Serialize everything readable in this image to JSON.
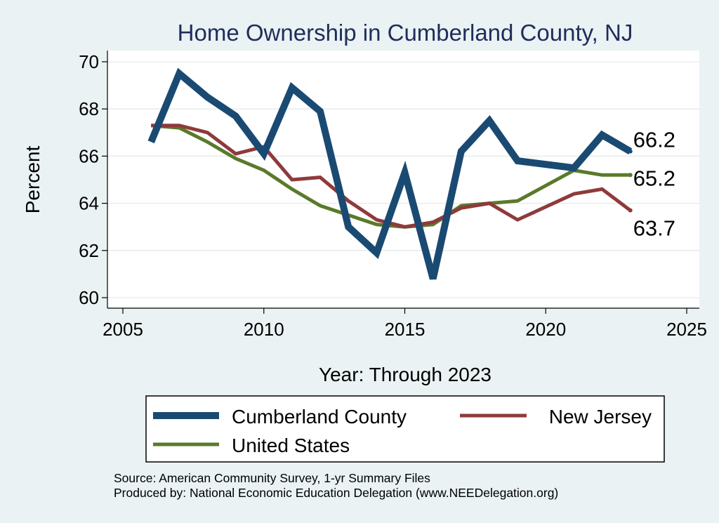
{
  "chart_data": {
    "type": "line",
    "title": "Home Ownership in Cumberland County, NJ",
    "xlabel": "Year: Through 2023",
    "ylabel": "Percent",
    "xlim": [
      2005,
      2025
    ],
    "ylim": [
      60,
      70
    ],
    "xticks": [
      "2005",
      "2010",
      "2015",
      "2020",
      "2025"
    ],
    "yticks": [
      "60",
      "62",
      "64",
      "66",
      "68",
      "70"
    ],
    "grid": true,
    "legend_position": "bottom",
    "series": [
      {
        "name": "Cumberland County",
        "color": "#1a4a72",
        "x": [
          2006,
          2007,
          2008,
          2009,
          2010,
          2011,
          2012,
          2013,
          2014,
          2015,
          2016,
          2017,
          2018,
          2019,
          2021,
          2022,
          2023
        ],
        "values": [
          66.6,
          69.5,
          68.5,
          67.7,
          66.1,
          68.9,
          67.9,
          63.0,
          61.9,
          65.3,
          60.8,
          66.2,
          67.5,
          65.8,
          65.5,
          66.9,
          66.2
        ],
        "end_label": "66.2"
      },
      {
        "name": "New Jersey",
        "color": "#8f3a3b",
        "x": [
          2006,
          2007,
          2008,
          2009,
          2010,
          2011,
          2012,
          2013,
          2014,
          2015,
          2016,
          2017,
          2018,
          2019,
          2021,
          2022,
          2023
        ],
        "values": [
          67.3,
          67.3,
          67.0,
          66.1,
          66.4,
          65.0,
          65.1,
          64.1,
          63.3,
          63.0,
          63.2,
          63.8,
          64.0,
          63.3,
          64.4,
          64.6,
          63.7
        ],
        "end_label": "63.7"
      },
      {
        "name": "United States",
        "color": "#5a7a2a",
        "x": [
          2006,
          2007,
          2008,
          2009,
          2010,
          2011,
          2012,
          2013,
          2014,
          2015,
          2016,
          2017,
          2018,
          2019,
          2021,
          2022,
          2023
        ],
        "values": [
          67.3,
          67.2,
          66.6,
          65.9,
          65.4,
          64.6,
          63.9,
          63.5,
          63.1,
          63.0,
          63.1,
          63.9,
          64.0,
          64.1,
          65.4,
          65.2,
          65.2
        ],
        "end_label": "65.2"
      }
    ]
  },
  "notes": {
    "source": "Source: American Community Survey, 1-yr Summary Files",
    "produced_by": "Produced by: National Economic Education Delegation (www.NEEDelegation.org)"
  }
}
